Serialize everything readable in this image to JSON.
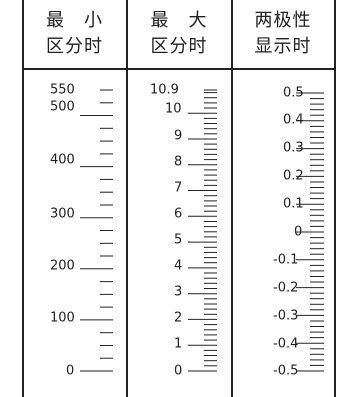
{
  "columns": [
    {
      "key": "min",
      "header": [
        "最　小",
        "区分时"
      ],
      "labels": [
        "550",
        "500",
        "400",
        "300",
        "200",
        "100",
        "0"
      ]
    },
    {
      "key": "max",
      "header": [
        "最　大",
        "区分时"
      ],
      "labels": [
        "10.9",
        "10",
        "9",
        "8",
        "7",
        "6",
        "5",
        "4",
        "3",
        "2",
        "1",
        "0"
      ]
    },
    {
      "key": "bipolar",
      "header": [
        "两极性",
        "显示时"
      ],
      "labels": [
        "0.5",
        "0.4",
        "0.3",
        "0.2",
        "0.1",
        "0",
        "-0.1",
        "-0.2",
        "-0.3",
        "-0.4",
        "-0.5"
      ]
    }
  ],
  "colors": {
    "ink": "#222222",
    "background": "#ffffff"
  }
}
